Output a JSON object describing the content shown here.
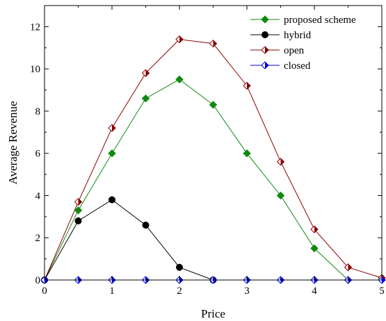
{
  "chart_data": {
    "type": "line",
    "xlabel": "Price",
    "ylabel": "Average Revenue",
    "xlim": [
      0,
      5
    ],
    "ylim": [
      0,
      13
    ],
    "xticks": [
      0,
      1,
      2,
      3,
      4,
      5
    ],
    "yticks": [
      0,
      2,
      4,
      6,
      8,
      10,
      12
    ],
    "grid": false,
    "legend_position": "top-right",
    "x": [
      0,
      0.5,
      1,
      1.5,
      2,
      2.5,
      3,
      3.5,
      4,
      4.5,
      5
    ],
    "series": [
      {
        "name": "proposed scheme",
        "color": "#0f8a0f",
        "marker": "diamond-filled",
        "x": [
          0,
          0.5,
          1,
          1.5,
          2,
          2.5,
          3,
          3.5,
          4,
          4.5
        ],
        "values": [
          0,
          3.3,
          6.0,
          8.6,
          9.5,
          8.3,
          6.0,
          4.0,
          1.5,
          0
        ]
      },
      {
        "name": "hybrid",
        "color": "#000000",
        "marker": "circle-filled",
        "x": [
          0,
          0.5,
          1,
          1.5,
          2,
          2.5
        ],
        "values": [
          0,
          2.8,
          3.8,
          2.6,
          0.6,
          0
        ]
      },
      {
        "name": "open",
        "color": "#8b0000",
        "marker": "diamond-half",
        "x": [
          0,
          0.5,
          1,
          1.5,
          2,
          2.5,
          3,
          3.5,
          4,
          4.5,
          5
        ],
        "values": [
          0,
          3.7,
          7.2,
          9.8,
          11.4,
          11.2,
          9.2,
          5.6,
          2.4,
          0.6,
          0.1
        ]
      },
      {
        "name": "closed",
        "color": "#0000ee",
        "marker": "diamond-half",
        "x": [
          0,
          0.5,
          1,
          1.5,
          2,
          2.5,
          3,
          3.5,
          4,
          4.5,
          5
        ],
        "values": [
          0,
          0,
          0,
          0,
          0,
          0,
          0,
          0,
          0,
          0,
          0
        ]
      }
    ]
  }
}
